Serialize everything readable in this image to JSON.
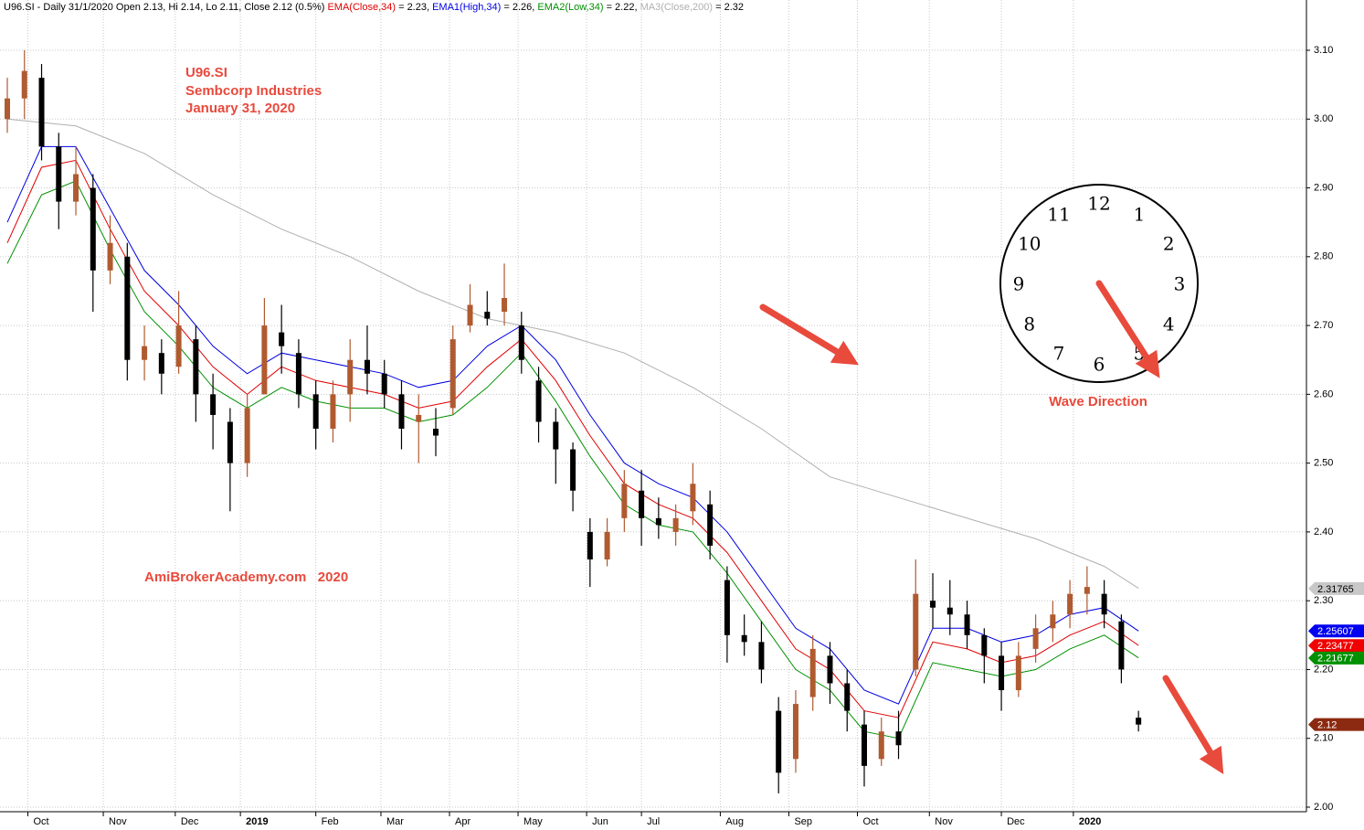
{
  "chart_data": {
    "type": "candlestick",
    "header": [
      {
        "text": "U96.SI - Daily 31/1/2020 Open 2.13, Hi 2.14, Lo 2.11, Close 2.12 (0.5%) ",
        "color": "#000000"
      },
      {
        "text": "EMA(Close,34)",
        "color": "#e00000"
      },
      {
        "text": " = 2.23, ",
        "color": "#000000"
      },
      {
        "text": "EMA1(High,34)",
        "color": "#0000e0"
      },
      {
        "text": " = 2.26, ",
        "color": "#000000"
      },
      {
        "text": "EMA2(Low,34)",
        "color": "#009000"
      },
      {
        "text": " = 2.22, ",
        "color": "#000000"
      },
      {
        "text": "MA3(Close,200)",
        "color": "#b0b0b0"
      },
      {
        "text": " = 2.32",
        "color": "#000000"
      }
    ],
    "annotations": [
      "U96.SI",
      "Sembcorp Industries",
      "January 31, 2020",
      "AmiBrokerAcademy.com   2020",
      "Wave Direction"
    ],
    "clock_numbers": [
      12,
      1,
      2,
      3,
      4,
      5,
      6,
      7,
      8,
      9,
      10,
      11
    ],
    "up_color": "#b05a30",
    "down_color": "#000000",
    "grid": true,
    "xlim": [
      0,
      379
    ],
    "ylim": [
      2.0,
      3.1
    ],
    "xticks": [
      {
        "value": 6,
        "label": "Oct"
      },
      {
        "value": 28,
        "label": "Nov"
      },
      {
        "value": 49,
        "label": "Dec"
      },
      {
        "value": 68,
        "label": "2019"
      },
      {
        "value": 90,
        "label": "Feb"
      },
      {
        "value": 109,
        "label": "Mar"
      },
      {
        "value": 129,
        "label": "Apr"
      },
      {
        "value": 149,
        "label": "May"
      },
      {
        "value": 169,
        "label": "Jun"
      },
      {
        "value": 185,
        "label": "Jul"
      },
      {
        "value": 208,
        "label": "Aug"
      },
      {
        "value": 228,
        "label": "Sep"
      },
      {
        "value": 248,
        "label": "Oct"
      },
      {
        "value": 269,
        "label": "Nov"
      },
      {
        "value": 290,
        "label": "Dec"
      },
      {
        "value": 311,
        "label": "2020"
      }
    ],
    "yticks": [
      {
        "value": 2.0,
        "label": "2.00"
      },
      {
        "value": 2.1,
        "label": "2.10"
      },
      {
        "value": 2.2,
        "label": "2.20"
      },
      {
        "value": 2.3,
        "label": "2.30"
      },
      {
        "value": 2.4,
        "label": "2.40"
      },
      {
        "value": 2.5,
        "label": "2.50"
      },
      {
        "value": 2.6,
        "label": "2.60"
      },
      {
        "value": 2.7,
        "label": "2.70"
      },
      {
        "value": 2.8,
        "label": "2.80"
      },
      {
        "value": 2.9,
        "label": "2.90"
      },
      {
        "value": 3.0,
        "label": "3.00"
      },
      {
        "value": 3.1,
        "label": "3.10"
      }
    ],
    "candles": {
      "x": [
        0,
        5,
        10,
        15,
        20,
        25,
        30,
        35,
        40,
        45,
        50,
        55,
        60,
        65,
        70,
        75,
        80,
        85,
        90,
        95,
        100,
        105,
        110,
        115,
        120,
        125,
        130,
        135,
        140,
        145,
        150,
        155,
        160,
        165,
        170,
        175,
        180,
        185,
        190,
        195,
        200,
        205,
        210,
        215,
        220,
        225,
        230,
        235,
        240,
        245,
        250,
        255,
        260,
        265,
        270,
        275,
        280,
        285,
        290,
        295,
        300,
        305,
        310,
        315,
        320,
        325,
        330
      ],
      "open": [
        3.0,
        3.03,
        3.06,
        2.96,
        2.88,
        2.9,
        2.78,
        2.8,
        2.65,
        2.66,
        2.64,
        2.68,
        2.6,
        2.56,
        2.5,
        2.6,
        2.69,
        2.66,
        2.6,
        2.55,
        2.6,
        2.65,
        2.63,
        2.6,
        2.56,
        2.55,
        2.58,
        2.7,
        2.72,
        2.72,
        2.7,
        2.62,
        2.56,
        2.52,
        2.4,
        2.36,
        2.42,
        2.46,
        2.42,
        2.4,
        2.43,
        2.44,
        2.33,
        2.25,
        2.24,
        2.14,
        2.07,
        2.16,
        2.22,
        2.18,
        2.12,
        2.07,
        2.11,
        2.2,
        2.3,
        2.29,
        2.28,
        2.25,
        2.22,
        2.17,
        2.23,
        2.26,
        2.28,
        2.31,
        2.31,
        2.27,
        2.13
      ],
      "high": [
        3.06,
        3.1,
        3.08,
        2.98,
        2.96,
        2.92,
        2.86,
        2.82,
        2.7,
        2.68,
        2.75,
        2.7,
        2.63,
        2.58,
        2.6,
        2.74,
        2.73,
        2.68,
        2.62,
        2.62,
        2.68,
        2.7,
        2.65,
        2.62,
        2.6,
        2.58,
        2.7,
        2.76,
        2.75,
        2.79,
        2.72,
        2.64,
        2.58,
        2.53,
        2.42,
        2.42,
        2.49,
        2.49,
        2.45,
        2.44,
        2.5,
        2.46,
        2.35,
        2.28,
        2.27,
        2.16,
        2.17,
        2.25,
        2.24,
        2.2,
        2.14,
        2.13,
        2.14,
        2.36,
        2.34,
        2.33,
        2.3,
        2.26,
        2.24,
        2.24,
        2.28,
        2.3,
        2.33,
        2.35,
        2.33,
        2.28,
        2.14
      ],
      "low": [
        2.98,
        3.0,
        2.94,
        2.84,
        2.86,
        2.72,
        2.76,
        2.62,
        2.62,
        2.6,
        2.63,
        2.56,
        2.52,
        2.43,
        2.48,
        2.6,
        2.63,
        2.58,
        2.52,
        2.53,
        2.56,
        2.6,
        2.58,
        2.52,
        2.5,
        2.51,
        2.57,
        2.69,
        2.7,
        2.7,
        2.63,
        2.53,
        2.47,
        2.43,
        2.32,
        2.35,
        2.4,
        2.38,
        2.39,
        2.38,
        2.41,
        2.36,
        2.21,
        2.22,
        2.18,
        2.02,
        2.05,
        2.14,
        2.15,
        2.11,
        2.03,
        2.06,
        2.07,
        2.19,
        2.26,
        2.25,
        2.23,
        2.18,
        2.14,
        2.16,
        2.21,
        2.24,
        2.26,
        2.28,
        2.26,
        2.18,
        2.11
      ],
      "close": [
        3.03,
        3.07,
        2.96,
        2.88,
        2.92,
        2.78,
        2.82,
        2.65,
        2.67,
        2.63,
        2.7,
        2.6,
        2.57,
        2.5,
        2.58,
        2.7,
        2.67,
        2.6,
        2.55,
        2.6,
        2.65,
        2.63,
        2.6,
        2.55,
        2.57,
        2.54,
        2.68,
        2.73,
        2.71,
        2.74,
        2.65,
        2.56,
        2.52,
        2.46,
        2.36,
        2.4,
        2.47,
        2.42,
        2.41,
        2.42,
        2.47,
        2.38,
        2.25,
        2.24,
        2.2,
        2.05,
        2.15,
        2.23,
        2.18,
        2.14,
        2.06,
        2.11,
        2.09,
        2.31,
        2.29,
        2.28,
        2.25,
        2.22,
        2.17,
        2.22,
        2.26,
        2.28,
        2.31,
        2.32,
        2.28,
        2.2,
        2.12
      ]
    },
    "series": [
      {
        "name": "MA3(Close,200)",
        "color": "#b0b0b0",
        "x": [
          0,
          20,
          40,
          60,
          80,
          100,
          120,
          140,
          160,
          180,
          200,
          220,
          240,
          260,
          280,
          300,
          320,
          330
        ],
        "values": [
          3.0,
          2.99,
          2.95,
          2.89,
          2.84,
          2.8,
          2.75,
          2.71,
          2.69,
          2.66,
          2.61,
          2.55,
          2.48,
          2.45,
          2.42,
          2.39,
          2.35,
          2.318
        ]
      },
      {
        "name": "EMA1(High,34)",
        "color": "#0000e0",
        "x": [
          0,
          10,
          20,
          30,
          40,
          50,
          60,
          70,
          80,
          90,
          100,
          110,
          120,
          130,
          140,
          150,
          160,
          170,
          180,
          190,
          200,
          210,
          220,
          230,
          240,
          250,
          260,
          270,
          280,
          290,
          300,
          310,
          320,
          330
        ],
        "values": [
          2.85,
          2.96,
          2.96,
          2.87,
          2.78,
          2.73,
          2.67,
          2.63,
          2.66,
          2.65,
          2.64,
          2.63,
          2.61,
          2.62,
          2.67,
          2.7,
          2.65,
          2.57,
          2.5,
          2.47,
          2.45,
          2.4,
          2.33,
          2.26,
          2.23,
          2.17,
          2.15,
          2.26,
          2.26,
          2.24,
          2.25,
          2.28,
          2.29,
          2.256
        ]
      },
      {
        "name": "EMA(Close,34)",
        "color": "#e00000",
        "x": [
          0,
          10,
          20,
          30,
          40,
          50,
          60,
          70,
          80,
          90,
          100,
          110,
          120,
          130,
          140,
          150,
          160,
          170,
          180,
          190,
          200,
          210,
          220,
          230,
          240,
          250,
          260,
          270,
          280,
          290,
          300,
          310,
          320,
          330
        ],
        "values": [
          2.82,
          2.93,
          2.94,
          2.84,
          2.75,
          2.7,
          2.64,
          2.6,
          2.64,
          2.62,
          2.61,
          2.6,
          2.58,
          2.59,
          2.64,
          2.68,
          2.62,
          2.54,
          2.47,
          2.44,
          2.42,
          2.37,
          2.3,
          2.23,
          2.2,
          2.14,
          2.13,
          2.24,
          2.23,
          2.21,
          2.22,
          2.25,
          2.27,
          2.235
        ]
      },
      {
        "name": "EMA2(Low,34)",
        "color": "#009000",
        "x": [
          0,
          10,
          20,
          30,
          40,
          50,
          60,
          70,
          80,
          90,
          100,
          110,
          120,
          130,
          140,
          150,
          160,
          170,
          180,
          190,
          200,
          210,
          220,
          230,
          240,
          250,
          260,
          270,
          280,
          290,
          300,
          310,
          320,
          330
        ],
        "values": [
          2.79,
          2.89,
          2.91,
          2.81,
          2.72,
          2.67,
          2.61,
          2.58,
          2.61,
          2.59,
          2.58,
          2.58,
          2.56,
          2.57,
          2.61,
          2.66,
          2.59,
          2.51,
          2.44,
          2.41,
          2.4,
          2.34,
          2.27,
          2.2,
          2.17,
          2.11,
          2.1,
          2.21,
          2.2,
          2.19,
          2.2,
          2.23,
          2.25,
          2.217
        ]
      }
    ],
    "price_tags": [
      {
        "value": 2.31765,
        "color": "#c8c8c8",
        "text_color": "#000000"
      },
      {
        "value": 2.25607,
        "color": "#0000f0",
        "text_color": "#ffffff"
      },
      {
        "value": 2.23477,
        "color": "#f00000",
        "text_color": "#ffffff"
      },
      {
        "value": 2.21677,
        "color": "#009000",
        "text_color": "#ffffff"
      },
      {
        "value": 2.12,
        "color": "#8b2a10",
        "text_color": "#ffffff"
      }
    ]
  }
}
